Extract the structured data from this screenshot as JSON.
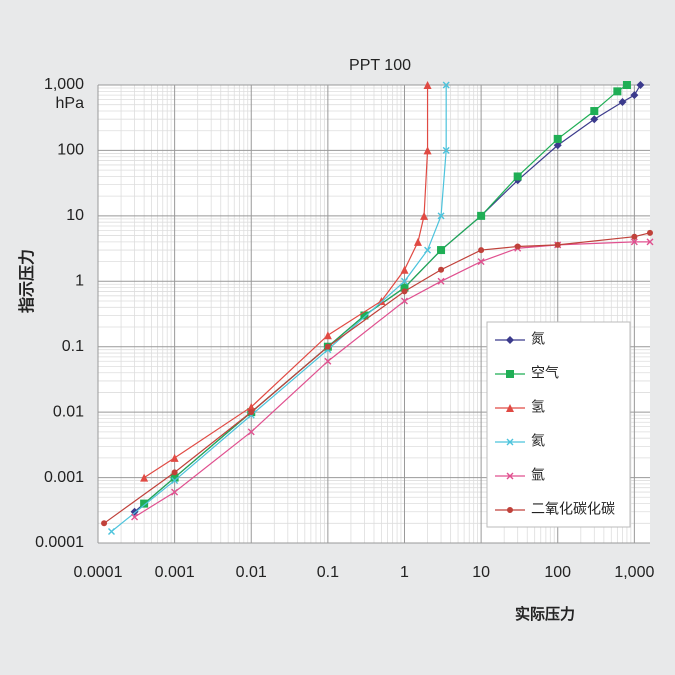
{
  "chart_data": {
    "type": "line",
    "title": "PPT 100",
    "x_label": "实际压力",
    "y_label": "指示压力",
    "y_unit": "hPa",
    "log_x": true,
    "log_y": true,
    "grid": true,
    "legend": "lower right",
    "xlim": [
      0.0001,
      1600
    ],
    "ylim": [
      0.0001,
      1000
    ],
    "xticks": [
      0.0001,
      0.001,
      0.01,
      0.1,
      1,
      10,
      100,
      {
        "value": 1000,
        "label": "1,000"
      }
    ],
    "yticks": [
      0.0001,
      0.001,
      0.01,
      0.1,
      1,
      10,
      100,
      {
        "value": 1000,
        "label": "1,000"
      }
    ],
    "series": [
      {
        "name": "氮",
        "color": "#3b3a8c",
        "marker": "diamond",
        "x": [
          0.0003,
          0.001,
          0.01,
          0.1,
          0.3,
          1,
          3,
          10,
          30,
          100,
          300,
          700,
          1000,
          1200
        ],
        "values": [
          0.0003,
          0.001,
          0.01,
          0.1,
          0.3,
          0.8,
          3,
          10,
          35,
          120,
          300,
          550,
          700,
          1000
        ]
      },
      {
        "name": "空气",
        "color": "#1fae55",
        "marker": "square",
        "x": [
          0.0004,
          0.001,
          0.01,
          0.1,
          0.3,
          1,
          3,
          10,
          30,
          100,
          300,
          600,
          800
        ],
        "values": [
          0.0004,
          0.001,
          0.01,
          0.1,
          0.3,
          0.8,
          3,
          10,
          40,
          150,
          400,
          800,
          1000
        ]
      },
      {
        "name": "氢",
        "color": "#e04a43",
        "marker": "triangle",
        "x": [
          0.0004,
          0.001,
          0.01,
          0.1,
          0.5,
          1,
          1.5,
          1.8,
          2,
          2
        ],
        "values": [
          0.001,
          0.002,
          0.012,
          0.15,
          0.5,
          1.5,
          4,
          10,
          100,
          1000
        ]
      },
      {
        "name": "氦",
        "color": "#4cc3dc",
        "marker": "cross",
        "x": [
          0.00015,
          0.001,
          0.01,
          0.1,
          1,
          2,
          3,
          3.5,
          3.5
        ],
        "values": [
          0.00015,
          0.0009,
          0.009,
          0.09,
          1,
          3,
          10,
          100,
          1000
        ]
      },
      {
        "name": "氩",
        "color": "#e0508f",
        "marker": "cross",
        "x": [
          0.0003,
          0.001,
          0.01,
          0.1,
          1,
          3,
          10,
          30,
          100,
          1000,
          1600
        ],
        "values": [
          0.00025,
          0.0006,
          0.005,
          0.06,
          0.5,
          1,
          2,
          3.2,
          3.6,
          4,
          4
        ]
      },
      {
        "name": "二氧化碳化碳",
        "color": "#c0413a",
        "marker": "circle",
        "x": [
          0.00012,
          0.001,
          0.01,
          0.1,
          1,
          3,
          10,
          30,
          100,
          1000,
          1600
        ],
        "values": [
          0.0002,
          0.0012,
          0.01,
          0.1,
          0.7,
          1.5,
          3,
          3.4,
          3.6,
          4.8,
          5.5
        ]
      }
    ]
  }
}
